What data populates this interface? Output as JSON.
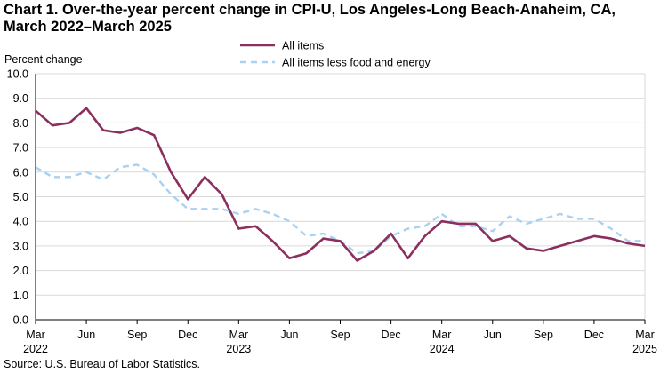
{
  "title_lines": [
    "Chart 1. Over-the-year percent change in CPI-U, Los Angeles-Long Beach-Anaheim, CA,",
    "March 2022–March 2025"
  ],
  "source": "Source: U.S. Bureau of Labor Statistics.",
  "colors": {
    "all_items": "#8b2f5e",
    "core": "#a9d1f3",
    "axis": "#000000",
    "grid": "#d9d9d9"
  },
  "chart_data": {
    "type": "line",
    "title": "Chart 1. Over-the-year percent change in CPI-U, Los Angeles-Long Beach-Anaheim, CA, March 2022–March 2025",
    "ylabel": "Percent change",
    "xlabel": "",
    "ylim": [
      0,
      10
    ],
    "yticks": [
      "0.0",
      "1.0",
      "2.0",
      "3.0",
      "4.0",
      "5.0",
      "6.0",
      "7.0",
      "8.0",
      "9.0",
      "10.0"
    ],
    "grid": true,
    "legend_position": "top-center",
    "x": [
      "Mar 2022",
      "Apr 2022",
      "May 2022",
      "Jun 2022",
      "Jul 2022",
      "Aug 2022",
      "Sep 2022",
      "Oct 2022",
      "Nov 2022",
      "Dec 2022",
      "Jan 2023",
      "Feb 2023",
      "Mar 2023",
      "Apr 2023",
      "May 2023",
      "Jun 2023",
      "Jul 2023",
      "Aug 2023",
      "Sep 2023",
      "Oct 2023",
      "Nov 2023",
      "Dec 2023",
      "Jan 2024",
      "Feb 2024",
      "Mar 2024",
      "Apr 2024",
      "May 2024",
      "Jun 2024",
      "Jul 2024",
      "Aug 2024",
      "Sep 2024",
      "Oct 2024",
      "Nov 2024",
      "Dec 2024",
      "Jan 2025",
      "Feb 2025",
      "Mar 2025"
    ],
    "xtick_labels": [
      {
        "index": 0,
        "month": "Mar",
        "year": "2022"
      },
      {
        "index": 3,
        "month": "Jun",
        "year": ""
      },
      {
        "index": 6,
        "month": "Sep",
        "year": ""
      },
      {
        "index": 9,
        "month": "Dec",
        "year": ""
      },
      {
        "index": 12,
        "month": "Mar",
        "year": "2023"
      },
      {
        "index": 15,
        "month": "Jun",
        "year": ""
      },
      {
        "index": 18,
        "month": "Sep",
        "year": ""
      },
      {
        "index": 21,
        "month": "Dec",
        "year": ""
      },
      {
        "index": 24,
        "month": "Mar",
        "year": "2024"
      },
      {
        "index": 27,
        "month": "Jun",
        "year": ""
      },
      {
        "index": 30,
        "month": "Sep",
        "year": ""
      },
      {
        "index": 33,
        "month": "Dec",
        "year": ""
      },
      {
        "index": 36,
        "month": "Mar",
        "year": "2025"
      }
    ],
    "series": [
      {
        "name": "All items",
        "style": "solid",
        "values": [
          8.5,
          7.9,
          8.0,
          8.6,
          7.7,
          7.6,
          7.8,
          7.5,
          6.0,
          4.9,
          5.8,
          5.1,
          3.7,
          3.8,
          3.2,
          2.5,
          2.7,
          3.3,
          3.2,
          2.4,
          2.8,
          3.5,
          2.5,
          3.4,
          4.0,
          3.9,
          3.9,
          3.2,
          3.4,
          2.9,
          2.8,
          3.0,
          3.2,
          3.4,
          3.3,
          3.1,
          3.0
        ]
      },
      {
        "name": "All items less food and energy",
        "style": "dashed",
        "values": [
          6.2,
          5.8,
          5.8,
          6.0,
          5.7,
          6.2,
          6.3,
          5.9,
          5.1,
          4.5,
          4.5,
          4.5,
          4.3,
          4.5,
          4.3,
          4.0,
          3.4,
          3.5,
          3.2,
          2.7,
          2.8,
          3.4,
          3.7,
          3.8,
          4.3,
          3.8,
          3.8,
          3.6,
          4.2,
          3.9,
          4.1,
          4.3,
          4.1,
          4.1,
          3.7,
          3.2,
          3.2
        ]
      }
    ]
  }
}
